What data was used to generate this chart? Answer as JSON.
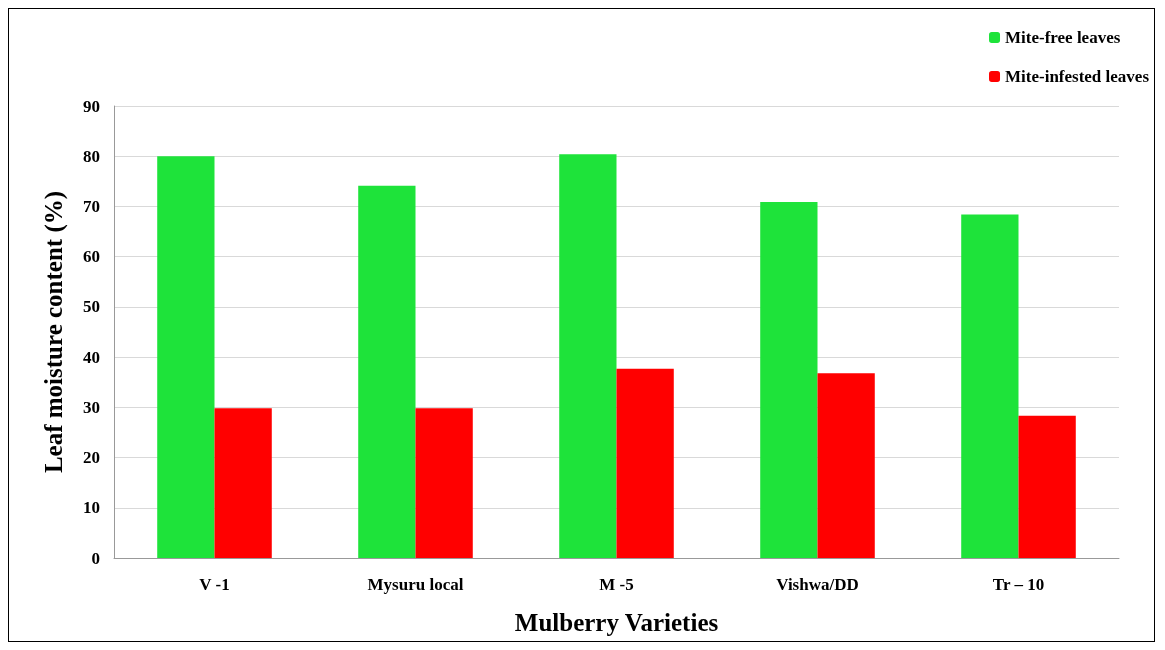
{
  "chart_data": {
    "type": "bar",
    "xlabel": "Mulberry Varieties",
    "ylabel": "Leaf moisture content (%)",
    "categories": [
      "V -1",
      "Mysuru local",
      "M -5",
      "Vishwa/DD",
      "Tr – 10"
    ],
    "series": [
      {
        "name": "Mite-free leaves",
        "color": "#1ee33a",
        "values": [
          80,
          74.1,
          80.4,
          70.9,
          68.4
        ]
      },
      {
        "name": "Mite-infested leaves",
        "color": "#ff0000",
        "values": [
          29.8,
          29.8,
          37.7,
          36.8,
          28.3
        ]
      }
    ],
    "ylim": [
      0,
      90
    ],
    "yticks": [
      0,
      10,
      20,
      30,
      40,
      50,
      60,
      70,
      80,
      90
    ],
    "grid": "y",
    "legend": "top right"
  }
}
